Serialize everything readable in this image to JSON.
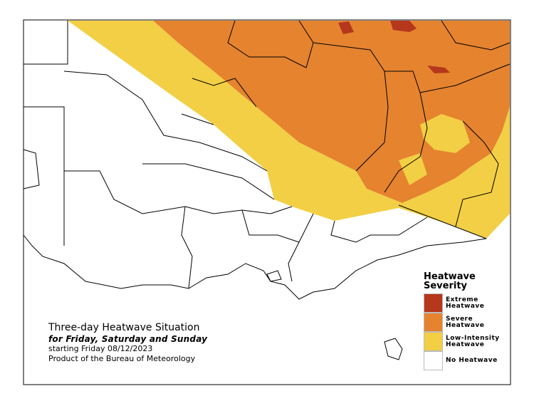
{
  "caption": {
    "title": "Three-day Heatwave Situation",
    "subtitle": "for Friday, Saturday and Sunday",
    "start": "starting Friday 08/12/2023",
    "source": "Product of the Bureau of Meteorology"
  },
  "legend": {
    "title_line1": "Heatwave",
    "title_line2": "Severity",
    "items": [
      {
        "label": "Extreme Heatwave",
        "color": "#b5371c"
      },
      {
        "label": "Severe Heatwave",
        "color": "#e5832f"
      },
      {
        "label": "Low-Intensity Heatwave",
        "color": "#f2cf44"
      },
      {
        "label": "No Heatwave",
        "color": "#ffffff"
      }
    ]
  }
}
